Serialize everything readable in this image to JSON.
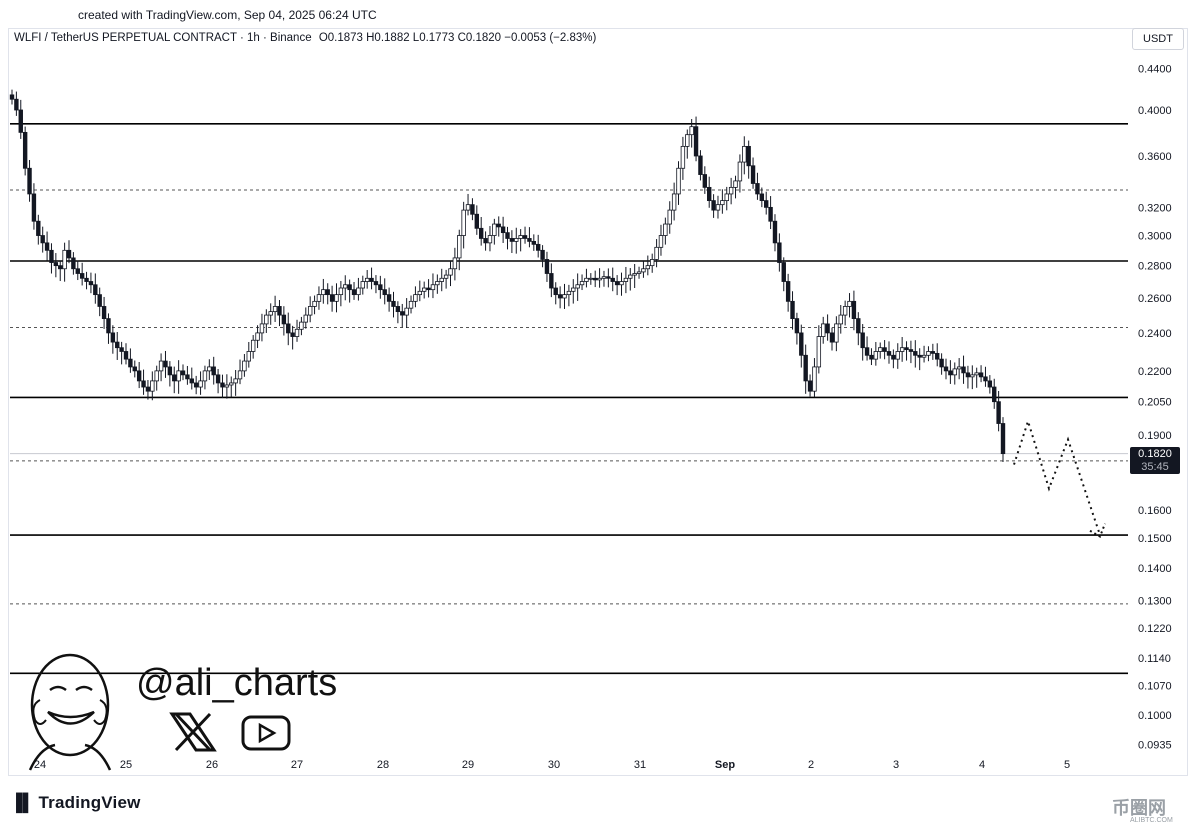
{
  "header": {
    "created_text": "created with TradingView.com, Sep 04, 2025 06:24 UTC"
  },
  "legend": {
    "symbol": "WLFI / TetherUS PERPETUAL CONTRACT · 1h · Binance",
    "ohlc": "O0.1873  H0.1882  L0.1773  C0.1820  −0.0053 (−2.83%)"
  },
  "currency": "USDT",
  "last_price": {
    "price": "0.1820",
    "countdown": "35:45"
  },
  "branding": {
    "handle": "@ali_charts",
    "footer": "TradingView",
    "watermark": "币圈网",
    "watermark_sub": "ALIBTC.COM"
  },
  "social_icons": [
    "x-logo-icon",
    "youtube-icon"
  ],
  "colors": {
    "candle": "#131722",
    "background": "#ffffff",
    "lines": "#000000"
  },
  "chart_data": {
    "type": "candlestick",
    "title": "WLFI / TetherUS PERPETUAL CONTRACT",
    "interval": "1h",
    "exchange": "Binance",
    "y_scale": "log",
    "y_ticks": [
      "0.4400",
      "0.4000",
      "0.3600",
      "0.3200",
      "0.3000",
      "0.2800",
      "0.2600",
      "0.2400",
      "0.2200",
      "0.2050",
      "0.1900",
      "0.1600",
      "0.1500",
      "0.1400",
      "0.1300",
      "0.1220",
      "0.1140",
      "0.1070",
      "0.1000",
      "0.0935"
    ],
    "ylim": [
      0.091,
      0.47
    ],
    "x_ticks": [
      "24",
      "25",
      "26",
      "27",
      "28",
      "29",
      "30",
      "31",
      "Sep",
      "2",
      "3",
      "4",
      "5"
    ],
    "support_resistance_solid": [
      0.3875,
      0.283,
      0.207,
      0.151,
      0.11
    ],
    "support_resistance_dashed": [
      0.333,
      0.243,
      0.179,
      0.129
    ],
    "projection_path": [
      0.1775,
      0.196,
      0.168,
      0.188,
      0.151
    ],
    "price_path": [
      0.41,
      0.4,
      0.38,
      0.35,
      0.33,
      0.31,
      0.3,
      0.295,
      0.29,
      0.282,
      0.28,
      0.278,
      0.29,
      0.285,
      0.278,
      0.275,
      0.272,
      0.27,
      0.268,
      0.262,
      0.255,
      0.248,
      0.24,
      0.235,
      0.232,
      0.23,
      0.226,
      0.222,
      0.22,
      0.215,
      0.212,
      0.21,
      0.215,
      0.22,
      0.225,
      0.222,
      0.218,
      0.215,
      0.22,
      0.218,
      0.216,
      0.214,
      0.212,
      0.215,
      0.22,
      0.222,
      0.218,
      0.214,
      0.212,
      0.213,
      0.214,
      0.216,
      0.22,
      0.225,
      0.23,
      0.236,
      0.24,
      0.245,
      0.25,
      0.252,
      0.255,
      0.25,
      0.245,
      0.24,
      0.238,
      0.242,
      0.246,
      0.25,
      0.255,
      0.258,
      0.262,
      0.265,
      0.262,
      0.258,
      0.262,
      0.266,
      0.268,
      0.265,
      0.262,
      0.266,
      0.27,
      0.272,
      0.27,
      0.268,
      0.265,
      0.262,
      0.258,
      0.255,
      0.252,
      0.25,
      0.254,
      0.258,
      0.262,
      0.264,
      0.266,
      0.265,
      0.268,
      0.27,
      0.272,
      0.274,
      0.278,
      0.285,
      0.3,
      0.318,
      0.322,
      0.315,
      0.305,
      0.298,
      0.295,
      0.3,
      0.308,
      0.306,
      0.302,
      0.298,
      0.296,
      0.298,
      0.3,
      0.298,
      0.296,
      0.294,
      0.29,
      0.284,
      0.275,
      0.266,
      0.262,
      0.26,
      0.262,
      0.264,
      0.266,
      0.268,
      0.27,
      0.272,
      0.272,
      0.271,
      0.272,
      0.273,
      0.272,
      0.27,
      0.268,
      0.27,
      0.272,
      0.274,
      0.275,
      0.276,
      0.278,
      0.28,
      0.284,
      0.292,
      0.3,
      0.308,
      0.318,
      0.33,
      0.35,
      0.368,
      0.378,
      0.385,
      0.36,
      0.345,
      0.335,
      0.325,
      0.318,
      0.322,
      0.325,
      0.33,
      0.335,
      0.34,
      0.355,
      0.368,
      0.352,
      0.338,
      0.33,
      0.325,
      0.32,
      0.31,
      0.295,
      0.282,
      0.27,
      0.258,
      0.248,
      0.24,
      0.228,
      0.215,
      0.21,
      0.222,
      0.238,
      0.245,
      0.24,
      0.235,
      0.245,
      0.25,
      0.255,
      0.258,
      0.248,
      0.24,
      0.232,
      0.228,
      0.226,
      0.23,
      0.232,
      0.23,
      0.228,
      0.226,
      0.23,
      0.232,
      0.231,
      0.23,
      0.228,
      0.227,
      0.228,
      0.23,
      0.229,
      0.226,
      0.222,
      0.22,
      0.218,
      0.221,
      0.222,
      0.219,
      0.217,
      0.218,
      0.219,
      0.217,
      0.215,
      0.212,
      0.205,
      0.195,
      0.182
    ]
  }
}
